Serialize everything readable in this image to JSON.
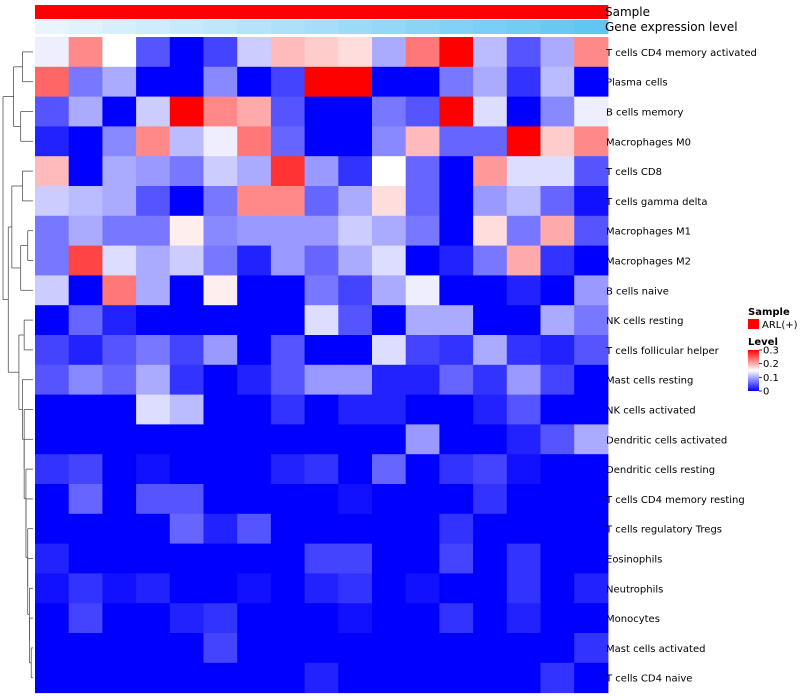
{
  "chart_data": {
    "type": "heatmap",
    "title": "",
    "annotations": {
      "sample_track_label": "Sample",
      "gene_track_label": "Gene expression level"
    },
    "legend": {
      "sample_title": "Sample",
      "sample_entries": [
        {
          "label": "ARL(+)",
          "color": "#ff0000"
        }
      ],
      "level_title": "Level",
      "level_ticks": [
        "0.3",
        "0.2",
        "0.1",
        "0"
      ],
      "level_range": [
        0,
        0.3
      ],
      "low_color": "#0000ff",
      "mid_color": "#ffffff",
      "high_color": "#ff0000"
    },
    "columns": 17,
    "gene_expression_track": [
      0.05,
      0.1,
      0.15,
      0.2,
      0.25,
      0.3,
      0.35,
      0.4,
      0.45,
      0.5,
      0.55,
      0.6,
      0.65,
      0.7,
      0.75,
      0.8,
      0.85
    ],
    "rows": [
      {
        "label": "T cells CD4 memory activated",
        "values": [
          0.14,
          0.22,
          0.15,
          0.05,
          0.0,
          0.04,
          0.12,
          0.19,
          0.18,
          0.17,
          0.1,
          0.23,
          0.3,
          0.11,
          0.05,
          0.1,
          0.22
        ]
      },
      {
        "label": "Plasma cells",
        "values": [
          0.24,
          0.07,
          0.1,
          0.0,
          0.0,
          0.08,
          0.0,
          0.04,
          0.3,
          0.3,
          0.0,
          0.0,
          0.07,
          0.1,
          0.03,
          0.11,
          0.0
        ]
      },
      {
        "label": "B cells memory",
        "values": [
          0.05,
          0.1,
          0.0,
          0.12,
          0.3,
          0.22,
          0.2,
          0.05,
          0.0,
          0.0,
          0.07,
          0.05,
          0.3,
          0.13,
          0.0,
          0.08,
          0.14
        ]
      },
      {
        "label": "Macrophages M0",
        "values": [
          0.02,
          0.0,
          0.08,
          0.22,
          0.11,
          0.14,
          0.23,
          0.06,
          0.0,
          0.0,
          0.08,
          0.19,
          0.06,
          0.06,
          0.3,
          0.18,
          0.22
        ]
      },
      {
        "label": "T cells CD8",
        "values": [
          0.19,
          0.0,
          0.1,
          0.09,
          0.07,
          0.12,
          0.1,
          0.27,
          0.09,
          0.03,
          0.15,
          0.06,
          0.0,
          0.21,
          0.13,
          0.13,
          0.05
        ]
      },
      {
        "label": "T cells gamma delta",
        "values": [
          0.12,
          0.11,
          0.1,
          0.05,
          0.0,
          0.07,
          0.22,
          0.22,
          0.06,
          0.1,
          0.17,
          0.06,
          0.0,
          0.09,
          0.11,
          0.06,
          0.01
        ]
      },
      {
        "label": "Macrophages M1",
        "values": [
          0.07,
          0.1,
          0.07,
          0.07,
          0.16,
          0.08,
          0.09,
          0.09,
          0.09,
          0.12,
          0.1,
          0.07,
          0.0,
          0.17,
          0.07,
          0.2,
          0.05
        ]
      },
      {
        "label": "Macrophages M2",
        "values": [
          0.07,
          0.26,
          0.13,
          0.1,
          0.12,
          0.07,
          0.02,
          0.09,
          0.06,
          0.1,
          0.13,
          0.0,
          0.02,
          0.07,
          0.2,
          0.03,
          0.0
        ]
      },
      {
        "label": "B cells naive",
        "values": [
          0.12,
          0.0,
          0.23,
          0.1,
          0.0,
          0.16,
          0.0,
          0.0,
          0.07,
          0.04,
          0.1,
          0.14,
          0.0,
          0.0,
          0.02,
          0.0,
          0.09
        ]
      },
      {
        "label": "NK cells resting",
        "values": [
          0.0,
          0.06,
          0.02,
          0.0,
          0.0,
          0.0,
          0.0,
          0.0,
          0.13,
          0.05,
          0.0,
          0.1,
          0.1,
          0.0,
          0.0,
          0.1,
          0.07
        ]
      },
      {
        "label": "T cells follicular helper",
        "values": [
          0.04,
          0.02,
          0.05,
          0.07,
          0.04,
          0.09,
          0.0,
          0.05,
          0.0,
          0.0,
          0.13,
          0.04,
          0.03,
          0.1,
          0.03,
          0.02,
          0.05
        ]
      },
      {
        "label": "Mast cells resting",
        "values": [
          0.05,
          0.08,
          0.06,
          0.1,
          0.03,
          0.0,
          0.02,
          0.05,
          0.09,
          0.09,
          0.02,
          0.02,
          0.06,
          0.03,
          0.09,
          0.04,
          0.0
        ]
      },
      {
        "label": "NK cells activated",
        "values": [
          0.0,
          0.0,
          0.0,
          0.13,
          0.11,
          0.0,
          0.0,
          0.03,
          0.0,
          0.02,
          0.02,
          0.0,
          0.0,
          0.02,
          0.05,
          0.0,
          0.0
        ]
      },
      {
        "label": "Dendritic cells activated",
        "values": [
          0.0,
          0.0,
          0.0,
          0.0,
          0.0,
          0.0,
          0.0,
          0.0,
          0.0,
          0.0,
          0.0,
          0.09,
          0.0,
          0.0,
          0.02,
          0.05,
          0.1
        ]
      },
      {
        "label": "Dendritic cells resting",
        "values": [
          0.03,
          0.04,
          0.0,
          0.01,
          0.0,
          0.0,
          0.0,
          0.02,
          0.03,
          0.0,
          0.06,
          0.0,
          0.03,
          0.04,
          0.01,
          0.0,
          0.0
        ]
      },
      {
        "label": "T cells CD4 memory resting",
        "values": [
          0.0,
          0.06,
          0.0,
          0.05,
          0.05,
          0.0,
          0.0,
          0.0,
          0.0,
          0.01,
          0.0,
          0.0,
          0.0,
          0.03,
          0.0,
          0.0,
          0.0
        ]
      },
      {
        "label": "T cells regulatory  Tregs",
        "values": [
          0.0,
          0.0,
          0.0,
          0.0,
          0.06,
          0.02,
          0.05,
          0.0,
          0.0,
          0.0,
          0.0,
          0.0,
          0.03,
          0.0,
          0.0,
          0.0,
          0.0
        ]
      },
      {
        "label": "Eosinophils",
        "values": [
          0.02,
          0.0,
          0.0,
          0.0,
          0.0,
          0.0,
          0.0,
          0.0,
          0.04,
          0.04,
          0.0,
          0.0,
          0.04,
          0.0,
          0.03,
          0.0,
          0.0
        ]
      },
      {
        "label": "Neutrophils",
        "values": [
          0.01,
          0.03,
          0.01,
          0.02,
          0.0,
          0.0,
          0.01,
          0.0,
          0.02,
          0.03,
          0.0,
          0.01,
          0.0,
          0.0,
          0.03,
          0.0,
          0.02
        ]
      },
      {
        "label": "Monocytes",
        "values": [
          0.0,
          0.04,
          0.0,
          0.0,
          0.02,
          0.03,
          0.0,
          0.0,
          0.0,
          0.01,
          0.0,
          0.0,
          0.03,
          0.0,
          0.02,
          0.0,
          0.0
        ]
      },
      {
        "label": "Mast cells activated",
        "values": [
          0.0,
          0.0,
          0.0,
          0.0,
          0.0,
          0.04,
          0.0,
          0.0,
          0.0,
          0.0,
          0.0,
          0.0,
          0.0,
          0.0,
          0.0,
          0.0,
          0.03
        ]
      },
      {
        "label": "T cells CD4 naive",
        "values": [
          0.0,
          0.0,
          0.0,
          0.0,
          0.0,
          0.0,
          0.0,
          0.0,
          0.02,
          0.0,
          0.0,
          0.0,
          0.0,
          0.0,
          0.0,
          0.03,
          0.0
        ]
      }
    ]
  }
}
